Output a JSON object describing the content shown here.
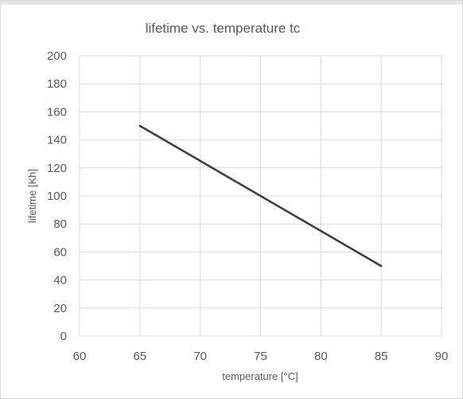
{
  "chart_data": {
    "type": "line",
    "title": "lifetime vs. temperature tc",
    "xlabel": "temperature [°C]",
    "ylabel": "lifetime [Kh]",
    "xlim": [
      60,
      90
    ],
    "ylim": [
      0,
      200
    ],
    "x_ticks": [
      "60",
      "65",
      "70",
      "75",
      "80",
      "85",
      "90"
    ],
    "y_ticks": [
      "0",
      "20",
      "40",
      "60",
      "80",
      "100",
      "120",
      "140",
      "160",
      "180",
      "200"
    ],
    "grid": true,
    "legend": "none",
    "series": [
      {
        "x": [
          65,
          85
        ],
        "y": [
          150,
          50
        ],
        "color": "#404040"
      }
    ]
  }
}
